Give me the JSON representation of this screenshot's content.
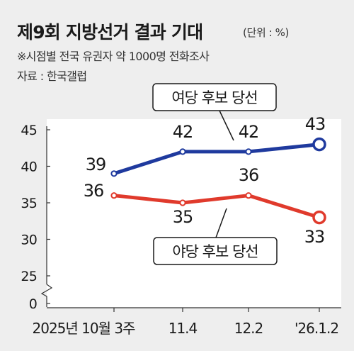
{
  "header": {
    "title": "제9회 지방선거 결과 기대",
    "unit": "(단위 : %)",
    "note": "※시점별 전국 유권자 약 1000명 전화조사",
    "source": "자료 : 한국갤럽"
  },
  "colors": {
    "ruling": "#1f3a9e",
    "opposition": "#e03a2c",
    "plot_bg": "#ffffff",
    "page_bg": "#eeeeee"
  },
  "chart_data": {
    "type": "line",
    "title": "제9회 지방선거 결과 기대",
    "xlabel": "",
    "ylabel": "",
    "x": [
      "2025년 10월 3주",
      "11.4",
      "12.2",
      "'26.1.2"
    ],
    "ylim": [
      25,
      45
    ],
    "y_axis_break": true,
    "y_ticks": [
      "45",
      "40",
      "35",
      "30",
      "25",
      "0"
    ],
    "grid": false,
    "series": [
      {
        "name": "여당 후보 당선",
        "values": [
          39,
          42,
          42,
          43
        ],
        "color": "#1f3a9e"
      },
      {
        "name": "야당 후보 당선",
        "values": [
          36,
          35,
          36,
          33
        ],
        "color": "#e03a2c"
      }
    ]
  }
}
